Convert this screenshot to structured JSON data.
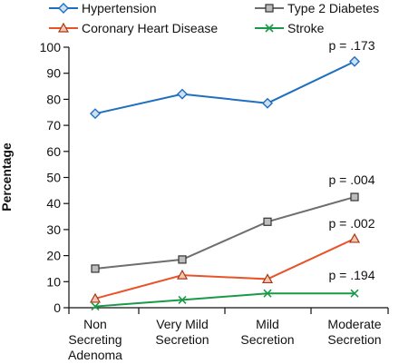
{
  "chart_data": {
    "type": "line",
    "title": "",
    "xlabel": "",
    "ylabel": "Percentage",
    "ylim": [
      0,
      100
    ],
    "yticks": [
      0,
      10,
      20,
      30,
      40,
      50,
      60,
      70,
      80,
      90,
      100
    ],
    "categories": [
      [
        "Non",
        "Secreting",
        "Adenoma"
      ],
      [
        "Very Mild",
        "Secretion"
      ],
      [
        "Mild",
        "Secretion"
      ],
      [
        "Moderate",
        "Secretion"
      ]
    ],
    "legend_position": "top",
    "series": [
      {
        "name": "Hypertension",
        "values": [
          74.5,
          82,
          78.5,
          94.5
        ],
        "color": "#1f6fbf",
        "marker": "diamond",
        "annotation": "p = .173"
      },
      {
        "name": "Type 2 Diabetes",
        "values": [
          15,
          18.5,
          33,
          42.5
        ],
        "color": "#6e6e6e",
        "marker": "square",
        "annotation": "p = .004"
      },
      {
        "name": "Coronary Heart  Disease",
        "values": [
          3.5,
          12.5,
          11,
          26.5
        ],
        "color": "#e8542a",
        "marker": "triangle",
        "annotation": "p = .002"
      },
      {
        "name": "Stroke",
        "values": [
          0.5,
          3,
          5.5,
          5.5
        ],
        "color": "#1a9a48",
        "marker": "x",
        "annotation": "p = .194"
      }
    ]
  }
}
